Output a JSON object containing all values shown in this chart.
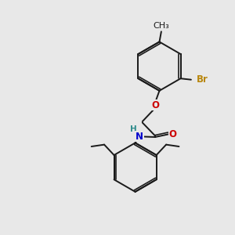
{
  "background_color": "#e8e8e8",
  "bond_color": "#1a1a1a",
  "bond_width": 1.4,
  "atom_colors": {
    "Br": "#b8860b",
    "O": "#cc0000",
    "N": "#0000cc",
    "H_N": "#2e8b8b"
  },
  "font_size": 8.5
}
